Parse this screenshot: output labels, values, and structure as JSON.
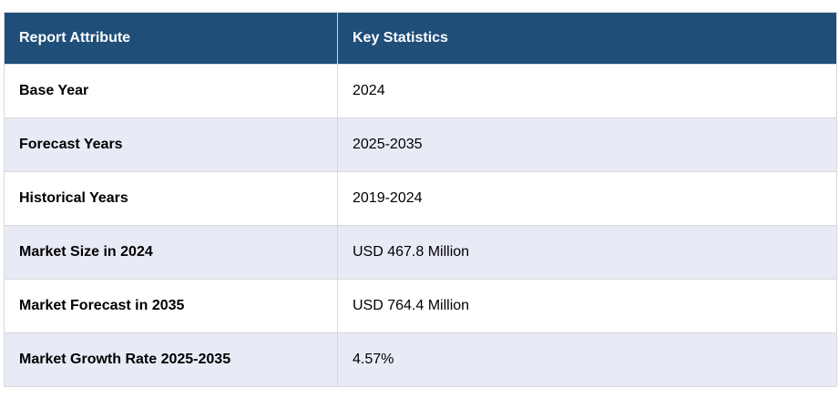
{
  "table": {
    "headers": [
      "Report Attribute",
      "Key Statistics"
    ],
    "rows": [
      {
        "attribute": "Base Year",
        "value": "2024"
      },
      {
        "attribute": "Forecast Years",
        "value": "2025-2035"
      },
      {
        "attribute": "Historical Years",
        "value": "2019-2024"
      },
      {
        "attribute": "Market Size in 2024",
        "value": "USD 467.8 Million"
      },
      {
        "attribute": "Market Forecast in 2035",
        "value": "USD 764.4 Million"
      },
      {
        "attribute": "Market Growth Rate 2025-2035",
        "value": "4.57%"
      }
    ],
    "colors": {
      "header_bg": "#1f4e79",
      "stripe_bg": "#e8eaf6",
      "border": "#d9d9d9"
    }
  }
}
